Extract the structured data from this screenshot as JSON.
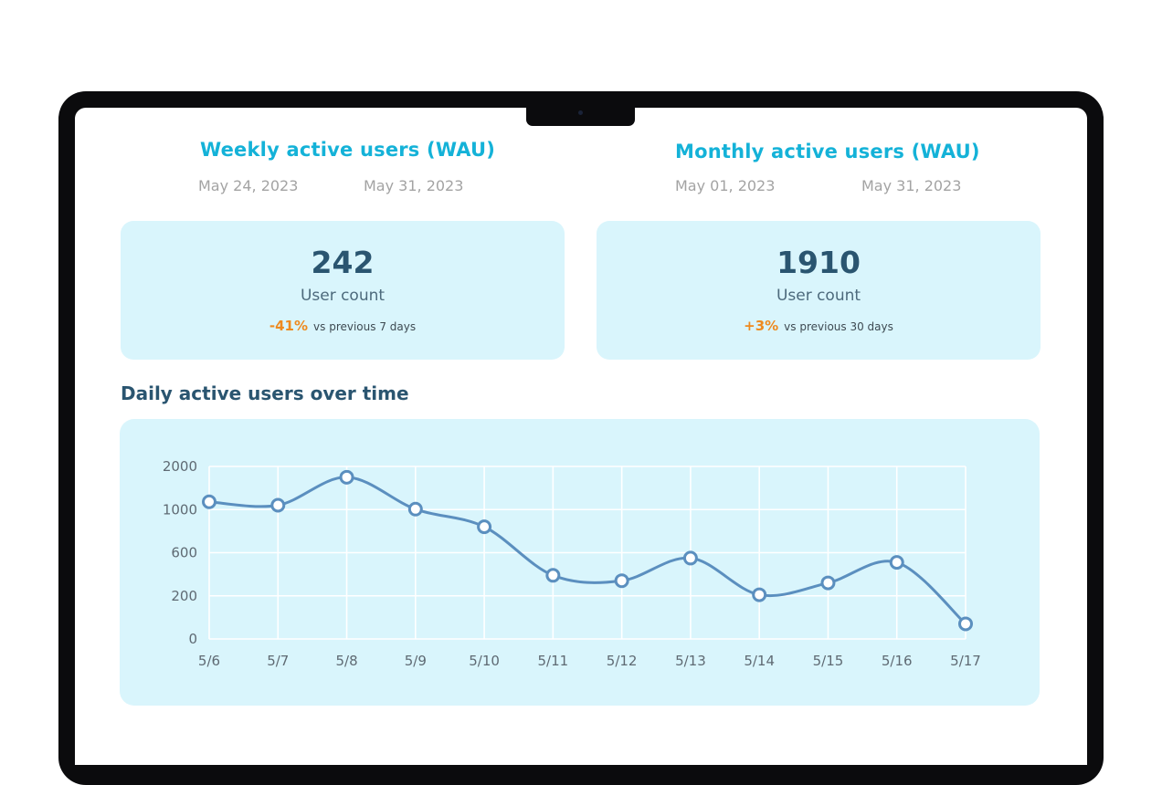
{
  "weekly": {
    "title": "Weekly active users (WAU)",
    "start_date": "May 24, 2023",
    "end_date": "May 31, 2023",
    "value": "242",
    "label": "User count",
    "change": "-41%",
    "compare": "vs previous 7 days"
  },
  "monthly": {
    "title": "Monthly active users (WAU)",
    "start_date": "May 01, 2023",
    "end_date": "May 31, 2023",
    "value": "1910",
    "label": "User count",
    "change": "+3%",
    "compare": "vs previous 30 days"
  },
  "section": {
    "title": "Daily active users over time"
  },
  "colors": {
    "accent_title": "#14b2d8",
    "card_bg": "#d9f5fc",
    "change": "#ee8a1f",
    "line": "#5b8fbf"
  },
  "chart_data": {
    "type": "line",
    "categories": [
      "5/6",
      "5/7",
      "5/8",
      "5/9",
      "5/10",
      "5/11",
      "5/12",
      "5/13",
      "5/14",
      "5/15",
      "5/16",
      "5/17"
    ],
    "y_ticks": [
      "0",
      "200",
      "600",
      "1000",
      "2000"
    ],
    "series": [
      {
        "values": [
          1180,
          1100,
          1750,
          1010,
          840,
          390,
          340,
          550,
          210,
          320,
          510,
          70
        ]
      }
    ],
    "title": "Daily active users over time",
    "xlabel": "",
    "ylabel": "",
    "grid": true,
    "smooth": true
  }
}
